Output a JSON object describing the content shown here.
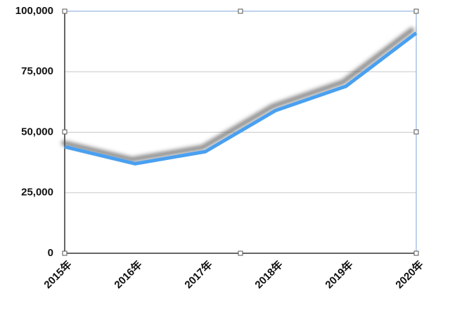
{
  "chart_data": {
    "type": "line",
    "categories": [
      "2015年",
      "2016年",
      "2017年",
      "2018年",
      "2019年",
      "2020年"
    ],
    "series": [
      {
        "color": "#4aa0f0",
        "values": [
          44000,
          37000,
          42000,
          59000,
          69000,
          91000
        ]
      }
    ],
    "ylim": [
      0,
      100000
    ],
    "yticks": [
      0,
      {
        "value": 25000,
        "label": "25,000"
      },
      {
        "value": 50000,
        "label": "50,000"
      },
      {
        "value": 75000,
        "label": "75,000"
      },
      {
        "value": 100000,
        "label": "100,000"
      }
    ],
    "grid": true
  }
}
